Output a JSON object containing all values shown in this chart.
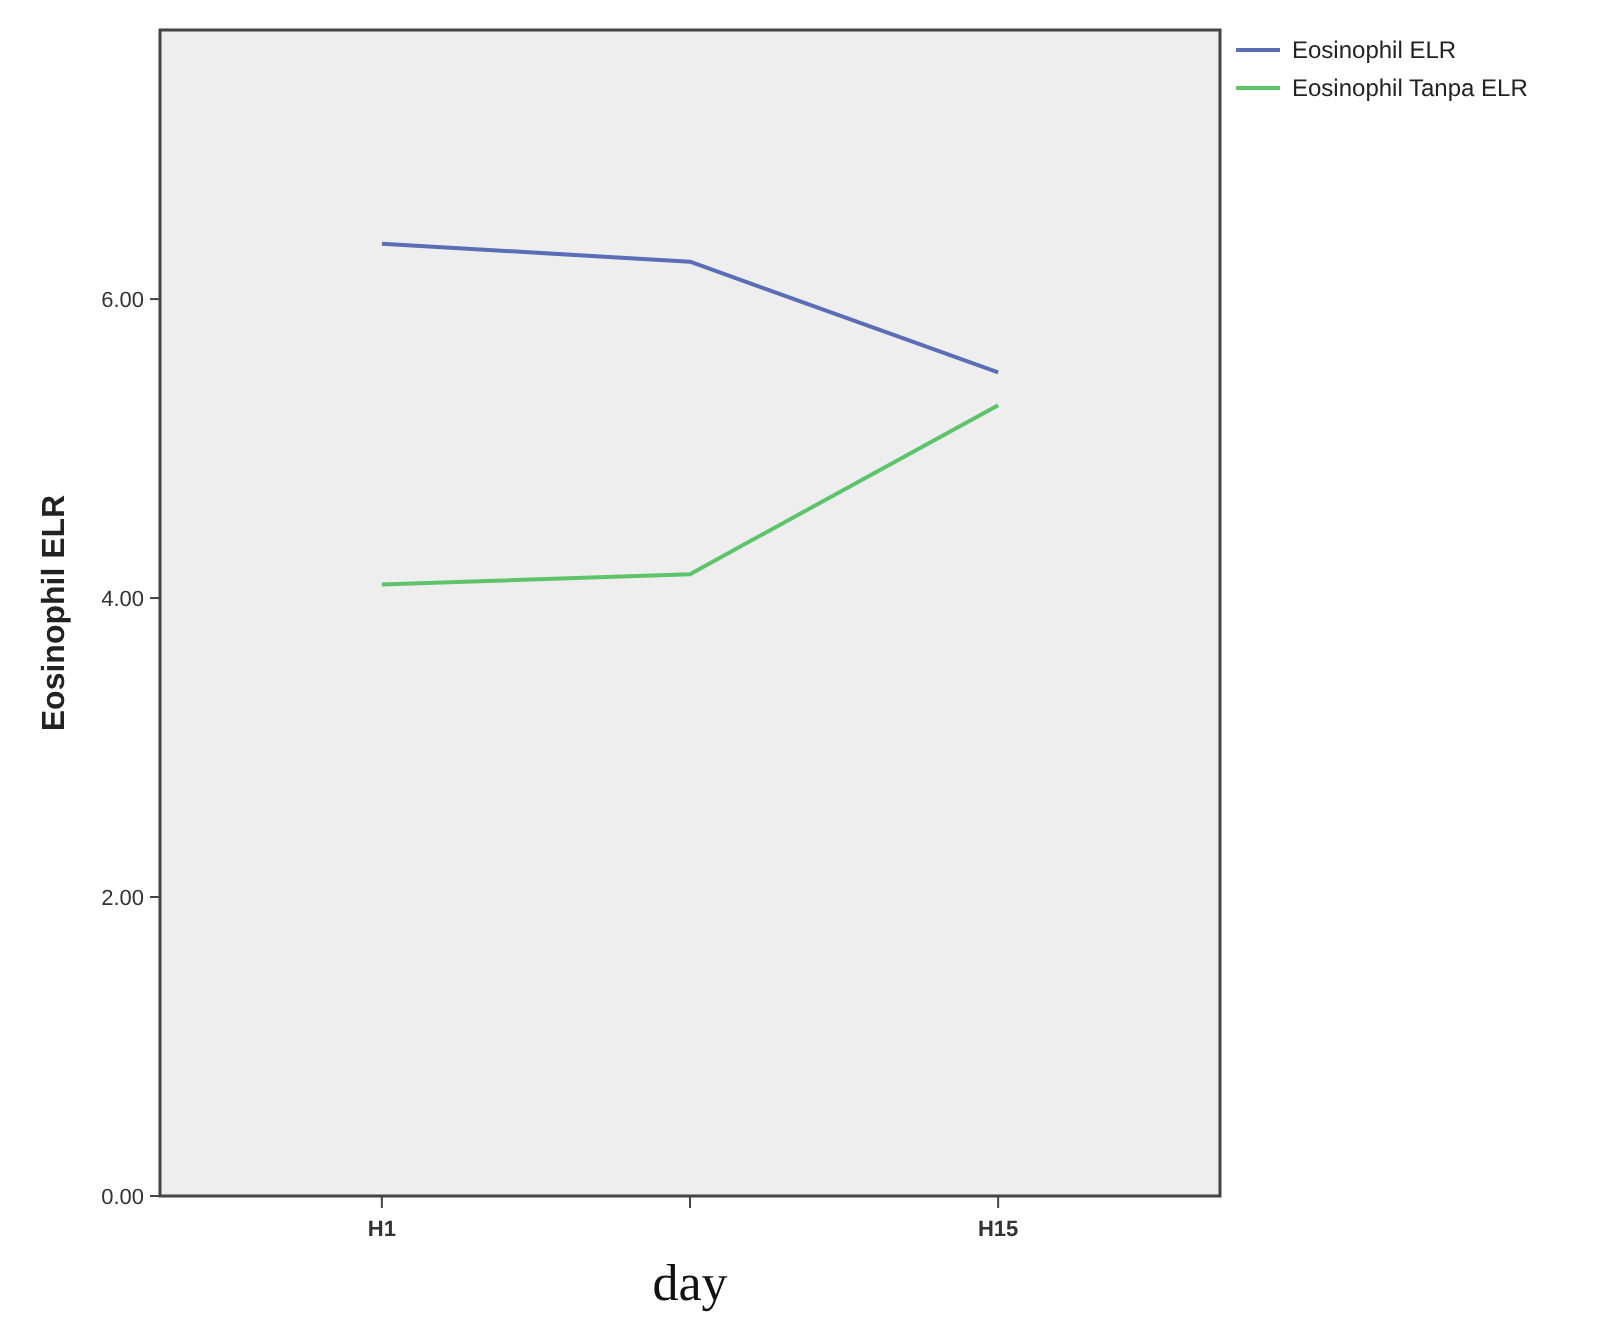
{
  "chart_data": {
    "type": "line",
    "ylabel": "Eosinophil ELR",
    "xlabel": "day",
    "categories": [
      "H1",
      null,
      "H15"
    ],
    "ylim": [
      0,
      7.8
    ],
    "yticks": [
      {
        "value": 0,
        "label": "0.00"
      },
      {
        "value": 2,
        "label": "2.00"
      },
      {
        "value": 4,
        "label": "4.00"
      },
      {
        "value": 6,
        "label": "6.00"
      }
    ],
    "grid": false,
    "legend": "top right",
    "marker": "none",
    "series": [
      {
        "name": "Eosinophil ELR",
        "color": "#5b6db5",
        "values": [
          6.37,
          6.25,
          5.51
        ]
      },
      {
        "name": "Eosinophil Tanpa ELR",
        "color": "#5ec46b",
        "values": [
          4.09,
          4.16,
          5.29
        ]
      }
    ]
  }
}
